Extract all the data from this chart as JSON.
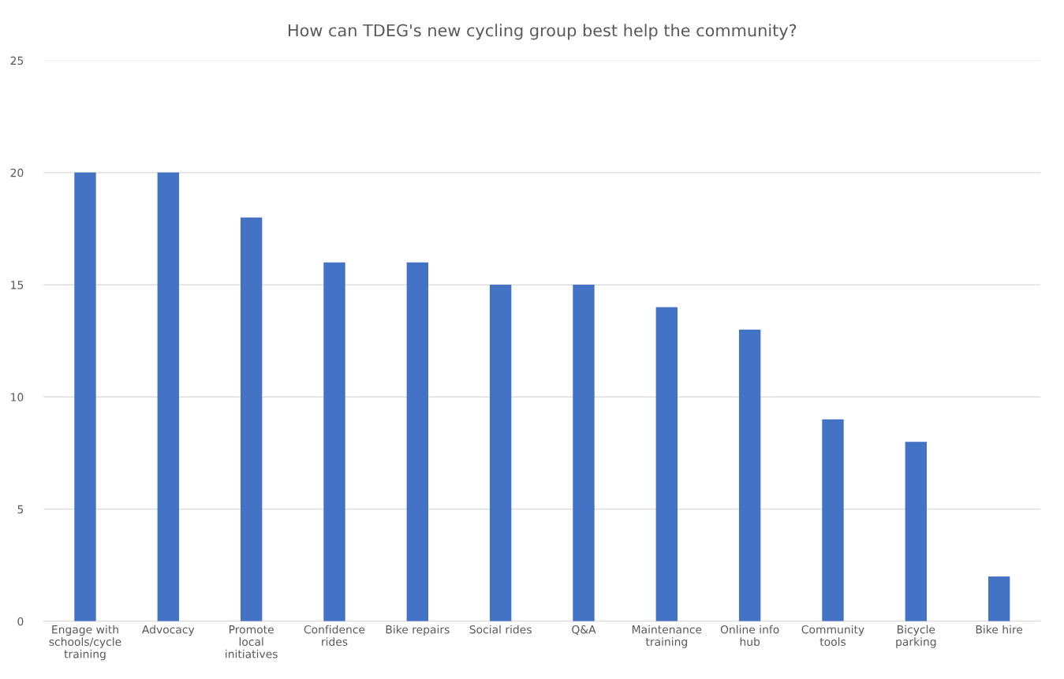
{
  "chart_data": {
    "type": "bar",
    "title": "How can TDEG's new cycling group best help the community?",
    "categories": [
      "Engage with\nschools/cycle\ntraining",
      "Advocacy",
      "Promote\nlocal\ninitiatives",
      "Confidence\nrides",
      "Bike repairs",
      "Social rides",
      "Q&A",
      "Maintenance\ntraining",
      "Online info\nhub",
      "Community\ntools",
      "Bicycle\nparking",
      "Bike hire"
    ],
    "values": [
      20,
      20,
      18,
      16,
      16,
      15,
      15,
      14,
      13,
      9,
      8,
      2
    ],
    "color": "#4472c4",
    "ylim": [
      0,
      25
    ],
    "yticks": [
      0,
      5,
      10,
      15,
      20,
      25
    ],
    "grid": "y"
  }
}
